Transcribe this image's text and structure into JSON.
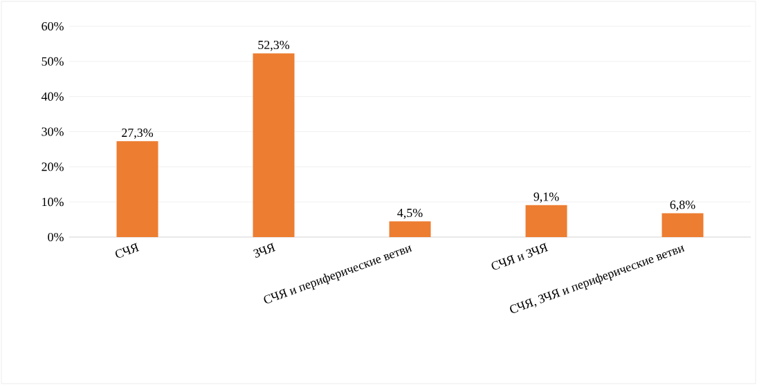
{
  "chart_data": {
    "type": "bar",
    "categories": [
      "СЧЯ",
      "ЗЧЯ",
      "СЧЯ и периферические ветви",
      "СЧЯ и ЗЧЯ",
      "СЧЯ, ЗЧЯ и периферические ветви"
    ],
    "values": [
      27.3,
      52.3,
      4.5,
      9.1,
      6.8
    ],
    "value_labels": [
      "27,3%",
      "52,3%",
      "4,5%",
      "9,1%",
      "6,8%"
    ],
    "color": "#ed7d31",
    "ylim": [
      0,
      60
    ],
    "yticks": [
      {
        "value": 0,
        "label": "0%"
      },
      {
        "value": 10,
        "label": "10%"
      },
      {
        "value": 20,
        "label": "20%"
      },
      {
        "value": 30,
        "label": "30%"
      },
      {
        "value": 40,
        "label": "40%"
      },
      {
        "value": 50,
        "label": "50%"
      },
      {
        "value": 60,
        "label": "60%"
      }
    ],
    "grid": "y"
  }
}
